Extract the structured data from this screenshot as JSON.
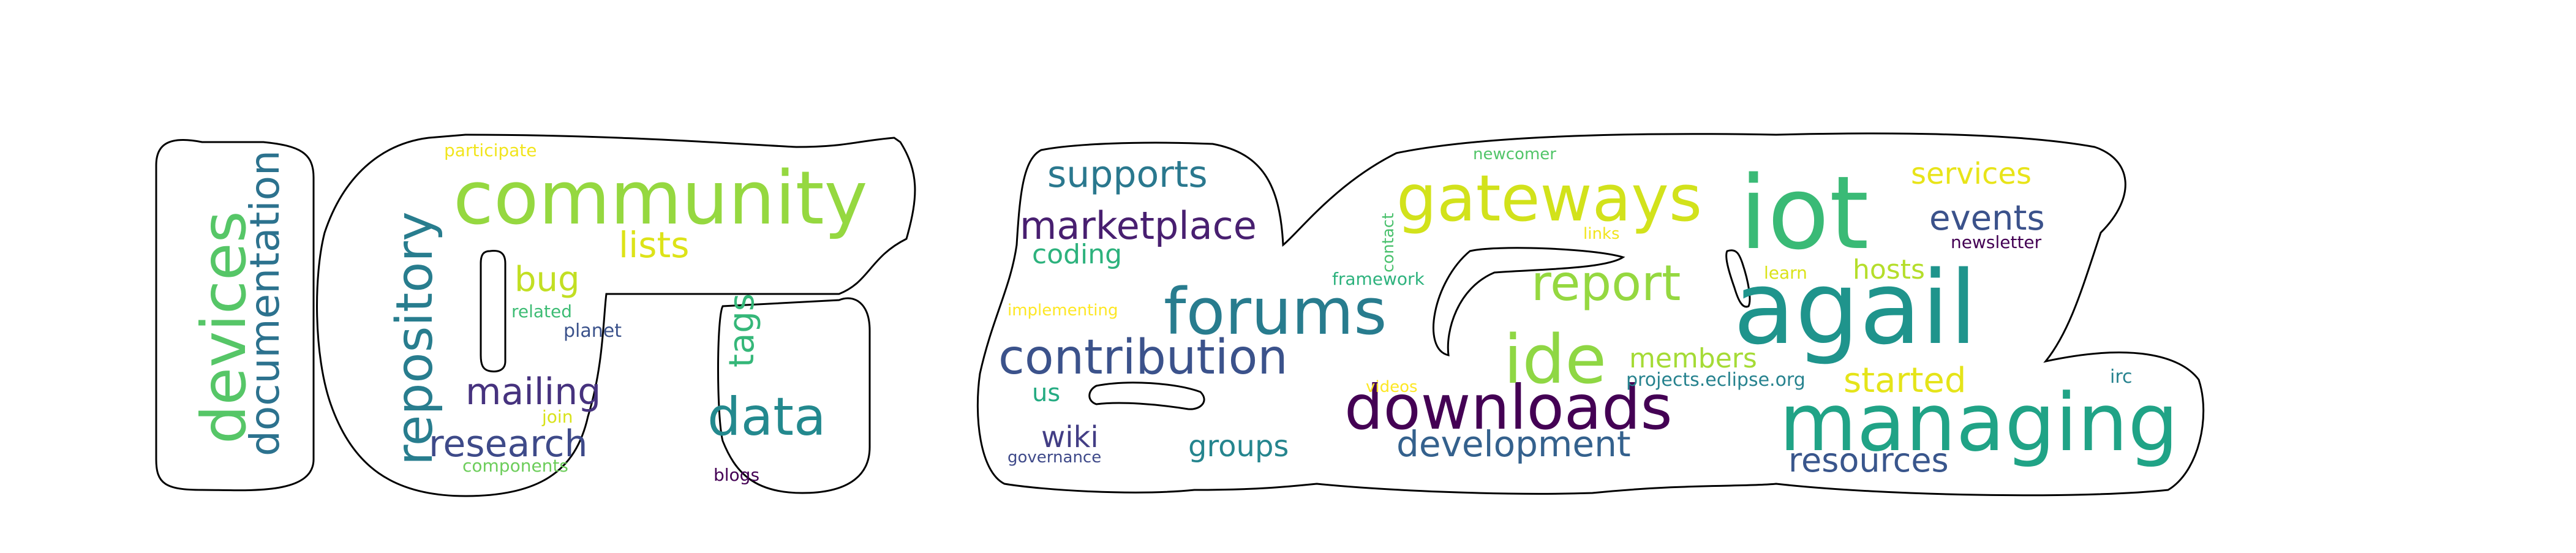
{
  "words": [
    {
      "text": "community",
      "color": "#95d840"
    },
    {
      "text": "iot",
      "color": "#3aba76"
    },
    {
      "text": "agail",
      "color": "#1f948c"
    },
    {
      "text": "gateways",
      "color": "#d2e21b"
    },
    {
      "text": "managing",
      "color": "#20a386"
    },
    {
      "text": "forums",
      "color": "#287c8e"
    },
    {
      "text": "downloads",
      "color": "#440154"
    },
    {
      "text": "contribution",
      "color": "#3b528b"
    },
    {
      "text": "ide",
      "color": "#8fd744"
    },
    {
      "text": "devices",
      "color": "#56c667"
    },
    {
      "text": "documentation",
      "color": "#2c728e"
    },
    {
      "text": "repository",
      "color": "#287d8e"
    },
    {
      "text": "data",
      "color": "#23898e"
    },
    {
      "text": "research",
      "color": "#3e4a89"
    },
    {
      "text": "mailing",
      "color": "#46327e"
    },
    {
      "text": "report",
      "color": "#95d840"
    },
    {
      "text": "marketplace",
      "color": "#481f70"
    },
    {
      "text": "development",
      "color": "#34618d"
    },
    {
      "text": "supports",
      "color": "#2a788e"
    },
    {
      "text": "lists",
      "color": "#dde318"
    },
    {
      "text": "events",
      "color": "#3b528b"
    },
    {
      "text": "started",
      "color": "#e5e419"
    },
    {
      "text": "resources",
      "color": "#39568c"
    },
    {
      "text": "services",
      "color": "#e8e419"
    },
    {
      "text": "hosts",
      "color": "#b5de2b"
    },
    {
      "text": "members",
      "color": "#a5db36"
    },
    {
      "text": "groups",
      "color": "#25858e"
    },
    {
      "text": "wiki",
      "color": "#433e85"
    },
    {
      "text": "bug",
      "color": "#c2df23"
    },
    {
      "text": "tags",
      "color": "#35b779"
    },
    {
      "text": "coding",
      "color": "#2db27d"
    },
    {
      "text": "us",
      "color": "#25ab82"
    },
    {
      "text": "projects.eclipse.org",
      "color": "#26828e"
    },
    {
      "text": "newsletter",
      "color": "#440154"
    },
    {
      "text": "newcomer",
      "color": "#52c569"
    },
    {
      "text": "participate",
      "color": "#f1e51d"
    },
    {
      "text": "related",
      "color": "#3dbc74"
    },
    {
      "text": "planet",
      "color": "#3b528b"
    },
    {
      "text": "join",
      "color": "#d8e219"
    },
    {
      "text": "components",
      "color": "#6ccd5a"
    },
    {
      "text": "blogs",
      "color": "#440154"
    },
    {
      "text": "governance",
      "color": "#3e4989"
    },
    {
      "text": "implementing",
      "color": "#fde725"
    },
    {
      "text": "framework",
      "color": "#2db27d"
    },
    {
      "text": "contact",
      "color": "#4ac16d"
    },
    {
      "text": "links",
      "color": "#f1e51d"
    },
    {
      "text": "learn",
      "color": "#dae319"
    },
    {
      "text": "videos",
      "color": "#fde725"
    },
    {
      "text": "irc",
      "color": "#26828e"
    }
  ]
}
